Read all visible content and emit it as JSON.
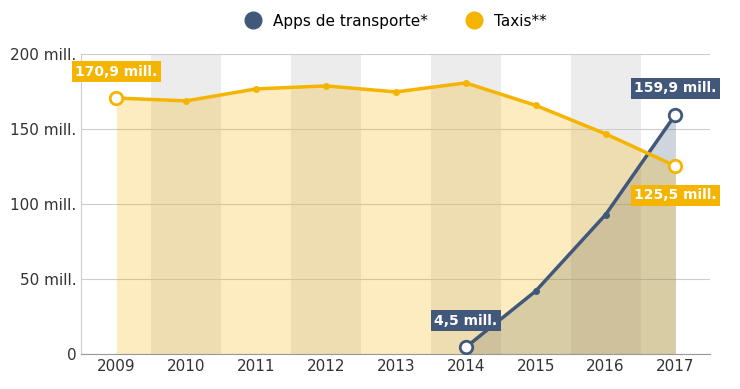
{
  "chart_data": {
    "type": "line",
    "categories": [
      "2009",
      "2010",
      "2011",
      "2012",
      "2013",
      "2014",
      "2015",
      "2016",
      "2017"
    ],
    "series": [
      {
        "name": "Apps de transporte*",
        "color": "#41587a",
        "marker": "circle",
        "line_style": "solid",
        "values": [
          null,
          null,
          null,
          null,
          null,
          4.5,
          42,
          93,
          159.9
        ],
        "value_labels": [
          null,
          null,
          null,
          null,
          null,
          "4,5 mill.",
          null,
          null,
          "159,9 mill."
        ]
      },
      {
        "name": "Taxis**",
        "color": "#f5b400",
        "marker": "circle",
        "line_style": "solid",
        "values": [
          170.9,
          169,
          177,
          179,
          175,
          181,
          166,
          147,
          125.5
        ],
        "value_labels": [
          "170,9 mill.",
          null,
          null,
          null,
          null,
          null,
          null,
          null,
          "125,5 mill."
        ]
      }
    ],
    "ylim": [
      0,
      200
    ],
    "yticks": [
      0,
      {
        "value": 50,
        "label": "50 mill."
      },
      {
        "value": 100,
        "label": "100 mill."
      },
      {
        "value": 150,
        "label": "150 mill."
      },
      {
        "value": 200,
        "label": "200 mill."
      }
    ],
    "grid": true,
    "legend": "upper center"
  }
}
